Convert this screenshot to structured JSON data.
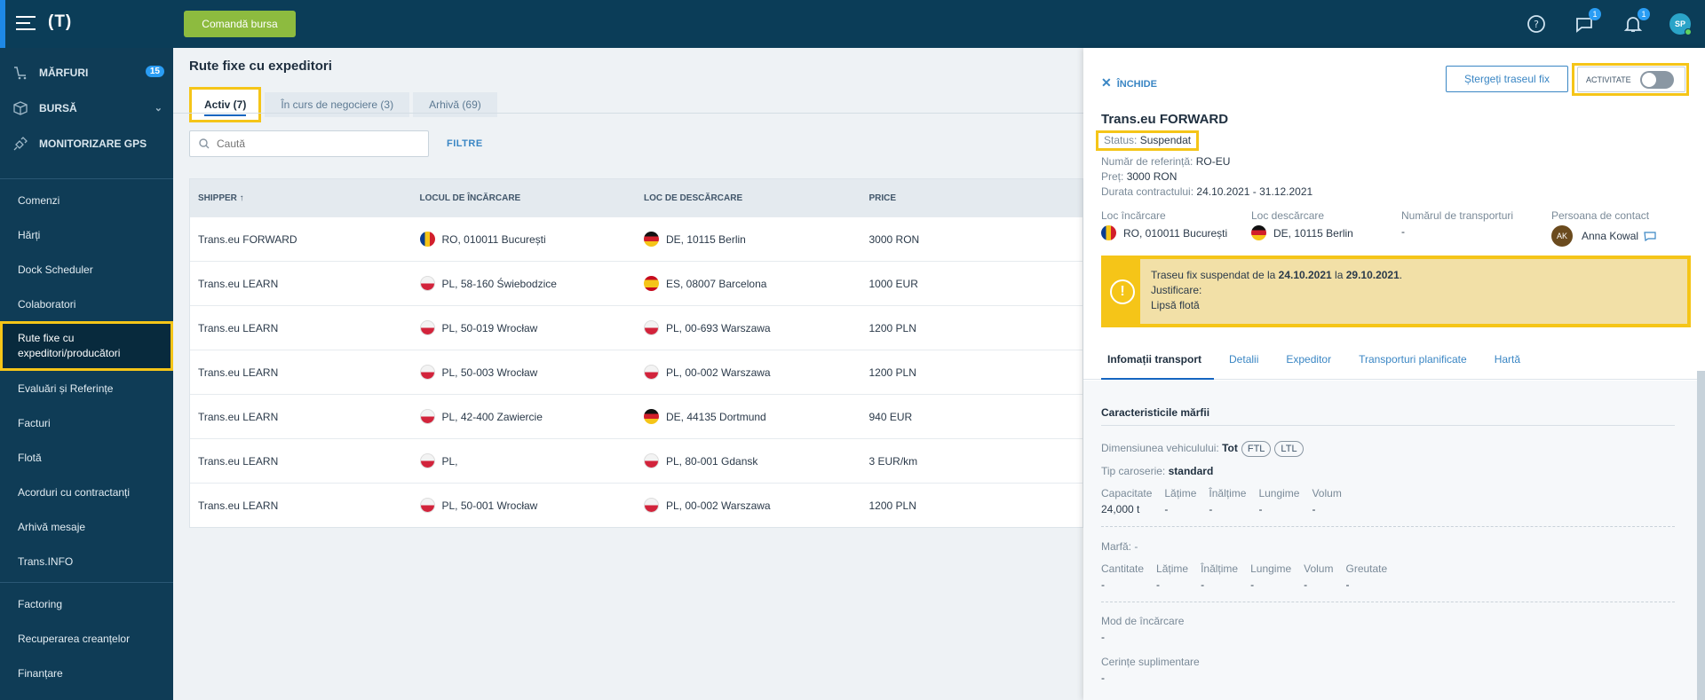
{
  "topbar": {
    "logo": "(T)",
    "command_button": "Comandă bursa",
    "chat_badge": "1",
    "notif_badge": "1",
    "avatar": "SP",
    "icons": [
      "help-icon",
      "chat-icon",
      "bell-icon"
    ]
  },
  "sidebar": {
    "main_items": [
      {
        "label": "MĂRFURI",
        "badge": "15"
      },
      {
        "label": "BURSĂ"
      },
      {
        "label": "MONITORIZARE GPS"
      }
    ],
    "sub_items": [
      {
        "label": "Comenzi"
      },
      {
        "label": "Hărți"
      },
      {
        "label": "Dock Scheduler"
      },
      {
        "label": "Colaboratori"
      },
      {
        "label": "Rute fixe cu expeditori/producători"
      },
      {
        "label": "Evaluări și Referințe"
      },
      {
        "label": "Facturi"
      },
      {
        "label": "Flotă"
      },
      {
        "label": "Acorduri cu contractanți"
      },
      {
        "label": "Arhivă mesaje"
      },
      {
        "label": "Trans.INFO"
      }
    ],
    "finance_items": [
      {
        "label": "Factoring"
      },
      {
        "label": "Recuperarea creanțelor"
      },
      {
        "label": "Finanțare"
      }
    ]
  },
  "main": {
    "title": "Rute fixe cu expeditori",
    "tabs": [
      {
        "label": "Activ (7)"
      },
      {
        "label": "În curs de negociere (3)"
      },
      {
        "label": "Arhivă (69)"
      }
    ],
    "search_placeholder": "Caută",
    "filter_label": "FILTRE",
    "columns": [
      "SHIPPER ↑",
      "LOCUL DE ÎNCĂRCARE",
      "LOC DE DESCĂRCARE",
      "PRICE"
    ],
    "rows": [
      {
        "shipper": "Trans.eu FORWARD",
        "load": "RO, 010011 București",
        "load_flag": "ro",
        "unload": "DE, 10115 Berlin",
        "unload_flag": "de",
        "price": "3000 RON"
      },
      {
        "shipper": "Trans.eu LEARN",
        "load": "PL, 58-160 Świebodzice",
        "load_flag": "pl",
        "unload": "ES, 08007 Barcelona",
        "unload_flag": "es",
        "price": "1000 EUR"
      },
      {
        "shipper": "Trans.eu LEARN",
        "load": "PL, 50-019 Wrocław",
        "load_flag": "pl",
        "unload": "PL, 00-693 Warszawa",
        "unload_flag": "pl",
        "price": "1200 PLN"
      },
      {
        "shipper": "Trans.eu LEARN",
        "load": "PL, 50-003 Wrocław",
        "load_flag": "pl",
        "unload": "PL, 00-002 Warszawa",
        "unload_flag": "pl",
        "price": "1200 PLN"
      },
      {
        "shipper": "Trans.eu LEARN",
        "load": "PL, 42-400 Zawiercie",
        "load_flag": "pl",
        "unload": "DE, 44135 Dortmund",
        "unload_flag": "de",
        "price": "940 EUR"
      },
      {
        "shipper": "Trans.eu LEARN",
        "load": "PL,",
        "load_flag": "pl",
        "unload": "PL, 80-001 Gdansk",
        "unload_flag": "pl",
        "price": "3 EUR/km"
      },
      {
        "shipper": "Trans.eu LEARN",
        "load": "PL, 50-001 Wrocław",
        "load_flag": "pl",
        "unload": "PL, 00-002 Warszawa",
        "unload_flag": "pl",
        "price": "1200 PLN"
      }
    ]
  },
  "panel": {
    "close_label": "ÎNCHIDE",
    "delete_label": "Ștergeți traseul fix",
    "activity_label": "ACTIVITATE",
    "title": "Trans.eu FORWARD",
    "status_label": "Status:",
    "status_value": "Suspendat",
    "ref_label": "Număr de referință:",
    "ref_value": "RO-EU",
    "price_label": "Preț:",
    "price_value": "3000 RON",
    "duration_label": "Durata contractului:",
    "duration_value": "24.10.2021 - 31.12.2021",
    "load_label": "Loc încărcare",
    "load_value": "RO, 010011 București",
    "unload_label": "Loc descărcare",
    "unload_value": "DE, 10115 Berlin",
    "transports_label": "Numărul de transporturi",
    "transports_value": "-",
    "contact_label": "Persoana de contact",
    "contact_initials": "AK",
    "contact_name": "Anna Kowal",
    "warning": {
      "prefix": "Traseu fix suspendat de la ",
      "from": "24.10.2021",
      "middle": " la ",
      "to": "29.10.2021",
      "suffix": ".",
      "reason_label": "Justificare:",
      "reason": "Lipsă flotă"
    },
    "tabs": [
      "Infomații transport",
      "Detalii",
      "Expeditor",
      "Transporturi planificate",
      "Hartă"
    ],
    "section_title": "Caracteristicile mărfii",
    "vehicle_label": "Dimensiunea vehiculului:",
    "vehicle_value": "Tot",
    "pill1": "FTL",
    "pill2": "LTL",
    "body_label": "Tip caroserie:",
    "body_value": "standard",
    "cap_grid": [
      {
        "h": "Capacitate",
        "v": "24,000 t"
      },
      {
        "h": "Lățime",
        "v": "-"
      },
      {
        "h": "Înălțime",
        "v": "-"
      },
      {
        "h": "Lungime",
        "v": "-"
      },
      {
        "h": "Volum",
        "v": "-"
      }
    ],
    "goods_label": "Marfă:",
    "goods_value": "-",
    "qty_grid": [
      {
        "h": "Cantitate",
        "v": "-"
      },
      {
        "h": "Lățime",
        "v": "-"
      },
      {
        "h": "Înălțime",
        "v": "-"
      },
      {
        "h": "Lungime",
        "v": "-"
      },
      {
        "h": "Volum",
        "v": "-"
      },
      {
        "h": "Greutate",
        "v": "-"
      }
    ],
    "loading_mode_label": "Mod de încărcare",
    "loading_mode_value": "-",
    "extra_label": "Cerințe suplimentare",
    "extra_value": "-"
  }
}
